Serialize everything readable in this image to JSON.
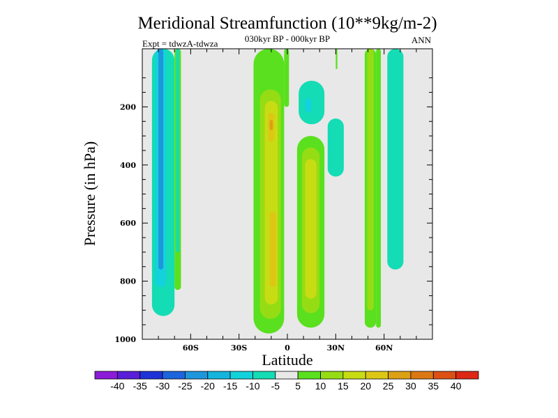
{
  "chart_data": {
    "type": "heatmap",
    "title": "Meridional Streamfunction (10**9kg/m-2)",
    "subtitle": "030kyr BP - 000kyr BP",
    "left_note": "Expt = tdwzA-tdwza",
    "right_note": "ANN",
    "xlabel": "Latitude",
    "ylabel": "Pressure (in hPa)",
    "xlim": [
      -90,
      90
    ],
    "ylim": [
      1000,
      0
    ],
    "y_reversed": true,
    "x_ticks": [
      {
        "value": -60,
        "label": "60S"
      },
      {
        "value": -30,
        "label": "30S"
      },
      {
        "value": 0,
        "label": "0"
      },
      {
        "value": 30,
        "label": "30N"
      },
      {
        "value": 60,
        "label": "60N"
      }
    ],
    "y_ticks": [
      {
        "value": 200,
        "label": "200"
      },
      {
        "value": 400,
        "label": "400"
      },
      {
        "value": 600,
        "label": "600"
      },
      {
        "value": 800,
        "label": "800"
      },
      {
        "value": 1000,
        "label": "1000"
      }
    ],
    "background_color": "#e8e8e8",
    "colorbar": {
      "labels": [
        "-40",
        "-35",
        "-30",
        "-25",
        "-20",
        "-15",
        "-10",
        "-5",
        "5",
        "10",
        "15",
        "20",
        "25",
        "30",
        "35",
        "40"
      ],
      "colors": [
        "#8c1cd8",
        "#5a1ed8",
        "#1e32d8",
        "#1e64dc",
        "#1e96dc",
        "#14b4dc",
        "#14d2dc",
        "#14dcb4",
        "#e8e8e8",
        "#5ae01e",
        "#96dc14",
        "#c8dc14",
        "#dcc814",
        "#dca014",
        "#dc7814",
        "#dc5014",
        "#dc2814"
      ]
    },
    "contours": [
      {
        "level": -5,
        "color": "#14dcb4",
        "lat_min": -79,
        "lat_max": -73,
        "p_top": 0,
        "p_bottom": 830
      },
      {
        "level": -10,
        "color": "#14d2dc",
        "lat_min": -80,
        "lat_max": -76,
        "p_top": 0,
        "p_bottom": 760
      },
      {
        "level": -5,
        "color": "#14dcb4",
        "lat_min": -84,
        "lat_max": -70,
        "p_top": 0,
        "p_bottom": 920
      },
      {
        "level": -10,
        "color": "#14d2dc",
        "lat_min": -82,
        "lat_max": -75,
        "p_top": 0,
        "p_bottom": 820
      },
      {
        "level": -15,
        "color": "#1e96dc",
        "lat_min": -80,
        "lat_max": -77,
        "p_top": 0,
        "p_bottom": 760
      },
      {
        "level": 5,
        "color": "#5ae01e",
        "lat_min": -70,
        "lat_max": -66,
        "p_top": 0,
        "p_bottom": 830
      },
      {
        "level": -5,
        "color": "#14dcb4",
        "lat_min": -69,
        "lat_max": -67,
        "p_top": 0,
        "p_bottom": 700
      },
      {
        "level": 5,
        "color": "#5ae01e",
        "lat_min": -21,
        "lat_max": -2,
        "p_top": 0,
        "p_bottom": 980
      },
      {
        "level": 10,
        "color": "#96dc14",
        "lat_min": -17,
        "lat_max": -4,
        "p_top": 140,
        "p_bottom": 930
      },
      {
        "level": 15,
        "color": "#c8dc14",
        "lat_min": -14,
        "lat_max": -6,
        "p_top": 180,
        "p_bottom": 880
      },
      {
        "level": 20,
        "color": "#dcc814",
        "lat_min": -12,
        "lat_max": -8,
        "p_top": 220,
        "p_bottom": 320
      },
      {
        "level": 25,
        "color": "#dca014",
        "lat_min": -11,
        "lat_max": -9,
        "p_top": 245,
        "p_bottom": 280
      },
      {
        "level": 20,
        "color": "#dcc814",
        "lat_min": -11,
        "lat_max": -7,
        "p_top": 560,
        "p_bottom": 820
      },
      {
        "level": 5,
        "color": "#5ae01e",
        "lat_min": 6,
        "lat_max": 23,
        "p_top": 300,
        "p_bottom": 960
      },
      {
        "level": 10,
        "color": "#96dc14",
        "lat_min": 9,
        "lat_max": 20,
        "p_top": 340,
        "p_bottom": 910
      },
      {
        "level": 15,
        "color": "#c8dc14",
        "lat_min": 11,
        "lat_max": 18,
        "p_top": 380,
        "p_bottom": 860
      },
      {
        "level": -5,
        "color": "#14dcb4",
        "lat_min": 7,
        "lat_max": 23,
        "p_top": 110,
        "p_bottom": 260
      },
      {
        "level": -10,
        "color": "#14d2dc",
        "lat_min": 11,
        "lat_max": 15,
        "p_top": 170,
        "p_bottom": 220
      },
      {
        "level": -5,
        "color": "#14dcb4",
        "lat_min": 25,
        "lat_max": 35,
        "p_top": 240,
        "p_bottom": 440
      },
      {
        "level": 5,
        "color": "#5ae01e",
        "lat_min": -2,
        "lat_max": 1,
        "p_top": 0,
        "p_bottom": 200
      },
      {
        "level": 5,
        "color": "#5ae01e",
        "lat_min": 30,
        "lat_max": 31,
        "p_top": 0,
        "p_bottom": 70
      },
      {
        "level": 5,
        "color": "#5ae01e",
        "lat_min": 48,
        "lat_max": 55,
        "p_top": 0,
        "p_bottom": 960
      },
      {
        "level": 10,
        "color": "#96dc14",
        "lat_min": 49.5,
        "lat_max": 53.5,
        "p_top": 0,
        "p_bottom": 900
      },
      {
        "level": 5,
        "color": "#5ae01e",
        "lat_min": 55,
        "lat_max": 58,
        "p_top": 0,
        "p_bottom": 960
      },
      {
        "level": -5,
        "color": "#14dcb4",
        "lat_min": 62,
        "lat_max": 72,
        "p_top": 0,
        "p_bottom": 760
      }
    ]
  }
}
